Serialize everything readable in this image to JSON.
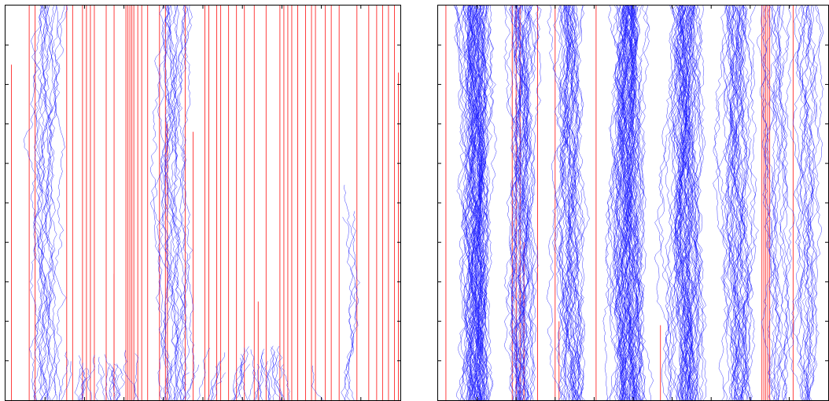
{
  "colors": {
    "background": "#ffffff",
    "axes": "#000000",
    "paths_series": "#1a1aff",
    "lines_series": "#ff2a2a"
  },
  "chart_data": [
    {
      "type": "line",
      "panel": "left",
      "title": "",
      "xlabel": "",
      "ylabel": "",
      "grid": false,
      "legend": "none",
      "tick_labels_visible": false,
      "xlim": [
        0,
        1
      ],
      "ylim": [
        0,
        1
      ],
      "y_ticks_count": 10,
      "x_ticks_count": 10,
      "series": [
        {
          "color": "blue",
          "kind": "random-walk paths",
          "clusters": [
            {
              "x_center": 0.105,
              "spread": 0.035,
              "count": 14,
              "reach": 1.0
            },
            {
              "x_center": 0.43,
              "spread": 0.035,
              "count": 16,
              "reach": 1.0
            },
            {
              "x_center": 0.87,
              "spread": 0.02,
              "count": 4,
              "reach": 0.55
            },
            {
              "x_center": 0.65,
              "spread": 0.25,
              "count": 28,
              "reach": 0.14
            },
            {
              "x_center": 0.25,
              "spread": 0.2,
              "count": 20,
              "reach": 0.14
            }
          ]
        },
        {
          "color": "red",
          "kind": "vertical lines",
          "full_height_x": [
            0.06,
            0.075,
            0.155,
            0.17,
            0.195,
            0.205,
            0.215,
            0.225,
            0.255,
            0.275,
            0.305,
            0.31,
            0.315,
            0.32,
            0.325,
            0.335,
            0.345,
            0.36,
            0.39,
            0.405,
            0.455,
            0.505,
            0.515,
            0.535,
            0.545,
            0.565,
            0.585,
            0.605,
            0.63,
            0.66,
            0.695,
            0.705,
            0.715,
            0.725,
            0.74,
            0.76,
            0.775,
            0.785,
            0.81,
            0.825,
            0.845,
            0.89,
            0.92,
            0.94,
            0.955,
            0.97,
            0.985
          ],
          "partial": [
            {
              "x": 0.015,
              "top": 0.85
            },
            {
              "x": 0.275,
              "top": 0.32
            },
            {
              "x": 0.41,
              "top": 0.7
            },
            {
              "x": 0.475,
              "top": 0.68
            },
            {
              "x": 0.64,
              "top": 0.25
            },
            {
              "x": 0.995,
              "top": 0.83
            }
          ]
        }
      ]
    },
    {
      "type": "line",
      "panel": "right",
      "title": "",
      "xlabel": "",
      "ylabel": "",
      "grid": false,
      "legend": "none",
      "tick_labels_visible": false,
      "xlim": [
        0,
        1
      ],
      "ylim": [
        0,
        1
      ],
      "y_ticks_count": 10,
      "x_ticks_count": 10,
      "series": [
        {
          "color": "blue",
          "kind": "random-walk paths",
          "clusters": [
            {
              "x_center": 0.1,
              "spread": 0.05,
              "count": 60,
              "reach": 1.0
            },
            {
              "x_center": 0.22,
              "spread": 0.03,
              "count": 30,
              "reach": 1.0
            },
            {
              "x_center": 0.34,
              "spread": 0.04,
              "count": 30,
              "reach": 1.0
            },
            {
              "x_center": 0.49,
              "spread": 0.05,
              "count": 60,
              "reach": 1.0
            },
            {
              "x_center": 0.64,
              "spread": 0.06,
              "count": 50,
              "reach": 1.0
            },
            {
              "x_center": 0.77,
              "spread": 0.04,
              "count": 30,
              "reach": 1.0
            },
            {
              "x_center": 0.87,
              "spread": 0.03,
              "count": 12,
              "reach": 1.0
            },
            {
              "x_center": 0.95,
              "spread": 0.03,
              "count": 14,
              "reach": 1.0
            }
          ]
        },
        {
          "color": "red",
          "kind": "vertical lines",
          "full_height_x": [
            0.02,
            0.19,
            0.2,
            0.21,
            0.255,
            0.3,
            0.405,
            0.83,
            0.835,
            0.84,
            0.845,
            0.85,
            0.91
          ],
          "partial": [
            {
              "x": 0.22,
              "top": 0.4
            },
            {
              "x": 0.31,
              "top": 0.2
            },
            {
              "x": 0.57,
              "top": 0.19
            }
          ]
        }
      ]
    }
  ]
}
